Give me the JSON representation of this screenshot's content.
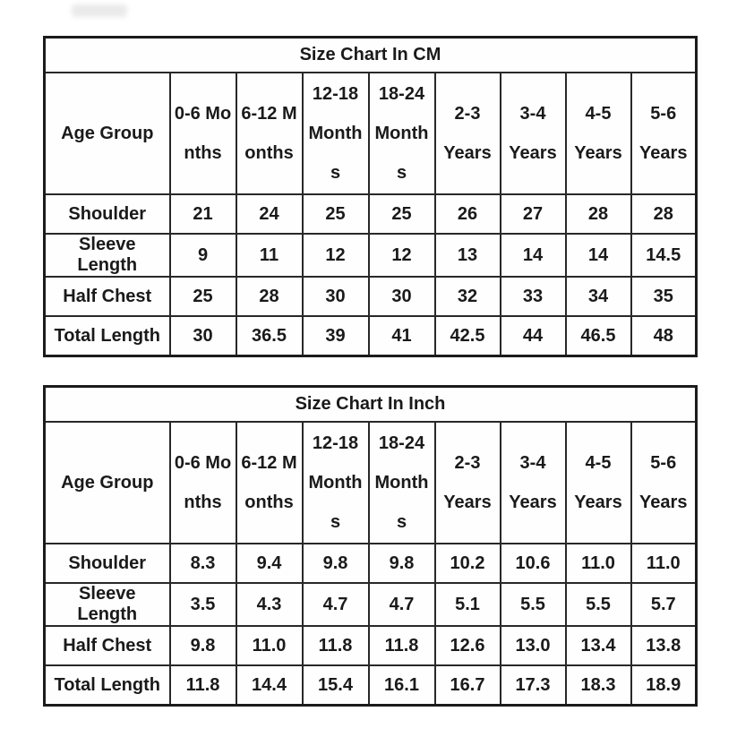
{
  "colors": {
    "background": "#ffffff",
    "border": "#1b1b1b",
    "grid_line": "#282828",
    "text": "#1a1a1a"
  },
  "chart_data": [
    {
      "type": "table",
      "title": "Size Chart In CM",
      "corner_label": "Age Group",
      "columns": [
        "0-6 Months",
        "6-12 Months",
        "12-18 Months",
        "18-24 Months",
        "2-3 Years",
        "3-4 Years",
        "4-5 Years",
        "5-6 Years"
      ],
      "rows": [
        {
          "label": "Shoulder",
          "values": [
            "21",
            "24",
            "25",
            "25",
            "26",
            "27",
            "28",
            "28"
          ]
        },
        {
          "label": "Sleeve Length",
          "values": [
            "9",
            "11",
            "12",
            "12",
            "13",
            "14",
            "14",
            "14.5"
          ]
        },
        {
          "label": "Half Chest",
          "values": [
            "25",
            "28",
            "30",
            "30",
            "32",
            "33",
            "34",
            "35"
          ]
        },
        {
          "label": "Total Length",
          "values": [
            "30",
            "36.5",
            "39",
            "41",
            "42.5",
            "44",
            "46.5",
            "48"
          ]
        }
      ]
    },
    {
      "type": "table",
      "title": "Size Chart In Inch",
      "corner_label": "Age Group",
      "columns": [
        "0-6 Months",
        "6-12 Months",
        "12-18 Months",
        "18-24 Months",
        "2-3 Years",
        "3-4 Years",
        "4-5 Years",
        "5-6 Years"
      ],
      "rows": [
        {
          "label": "Shoulder",
          "values": [
            "8.3",
            "9.4",
            "9.8",
            "9.8",
            "10.2",
            "10.6",
            "11.0",
            "11.0"
          ]
        },
        {
          "label": "Sleeve Length",
          "values": [
            "3.5",
            "4.3",
            "4.7",
            "4.7",
            "5.1",
            "5.5",
            "5.5",
            "5.7"
          ]
        },
        {
          "label": "Half Chest",
          "values": [
            "9.8",
            "11.0",
            "11.8",
            "11.8",
            "12.6",
            "13.0",
            "13.4",
            "13.8"
          ]
        },
        {
          "label": "Total Length",
          "values": [
            "11.8",
            "14.4",
            "15.4",
            "16.1",
            "16.7",
            "17.3",
            "18.3",
            "18.9"
          ]
        }
      ]
    }
  ]
}
